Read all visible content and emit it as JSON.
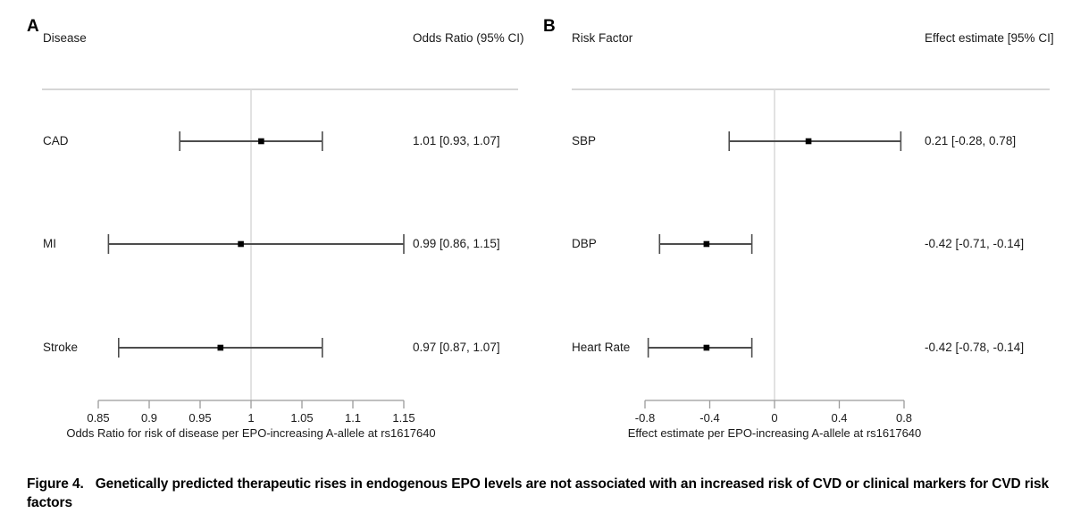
{
  "figure": {
    "caption_label": "Figure 4.",
    "caption_text": "Genetically predicted therapeutic rises in endogenous EPO levels are not associated with an increased risk of CVD or clinical markers for CVD risk factors"
  },
  "colors": {
    "text": "#1a1a1a",
    "ci_line": "#4d4d4d",
    "marker": "#000000",
    "reference_line": "#d8d8d8",
    "header_rule": "#c9c9c9",
    "axis": "#9b9b9b"
  },
  "chart_data": [
    {
      "type": "forest",
      "panel_letter": "A",
      "row_header": "Disease",
      "estimate_header": "Odds Ratio (95% CI)",
      "xlabel": "Odds Ratio for risk of disease per EPO-increasing A-allele at rs1617640",
      "ref_value": 1,
      "xlim": [
        0.85,
        1.15
      ],
      "ticks": [
        0.85,
        0.9,
        0.95,
        1,
        1.05,
        1.1,
        1.15
      ],
      "tick_labels": [
        "0.85",
        "0.9",
        "0.95",
        "1",
        "1.05",
        "1.1",
        "1.15"
      ],
      "rows": [
        {
          "label": "CAD",
          "estimate": 1.01,
          "ci_low": 0.93,
          "ci_high": 1.07,
          "estimate_text": "1.01 [0.93, 1.07]"
        },
        {
          "label": "MI",
          "estimate": 0.99,
          "ci_low": 0.86,
          "ci_high": 1.15,
          "estimate_text": "0.99 [0.86, 1.15]"
        },
        {
          "label": "Stroke",
          "estimate": 0.97,
          "ci_low": 0.87,
          "ci_high": 1.07,
          "estimate_text": "0.97 [0.87, 1.07]"
        }
      ]
    },
    {
      "type": "forest",
      "panel_letter": "B",
      "row_header": "Risk Factor",
      "estimate_header": "Effect estimate [95% CI]",
      "xlabel": "Effect estimate per EPO-increasing A-allele at rs1617640",
      "ref_value": 0,
      "xlim": [
        -0.8,
        0.8
      ],
      "ticks": [
        -0.8,
        -0.4,
        0,
        0.4,
        0.8
      ],
      "tick_labels": [
        "-0.8",
        "-0.4",
        "0",
        "0.4",
        "0.8"
      ],
      "rows": [
        {
          "label": "SBP",
          "estimate": 0.21,
          "ci_low": -0.28,
          "ci_high": 0.78,
          "estimate_text": "0.21 [-0.28, 0.78]"
        },
        {
          "label": "DBP",
          "estimate": -0.42,
          "ci_low": -0.71,
          "ci_high": -0.14,
          "estimate_text": "-0.42 [-0.71, -0.14]"
        },
        {
          "label": "Heart Rate",
          "estimate": -0.42,
          "ci_low": -0.78,
          "ci_high": -0.14,
          "estimate_text": "-0.42 [-0.78, -0.14]"
        }
      ]
    }
  ]
}
